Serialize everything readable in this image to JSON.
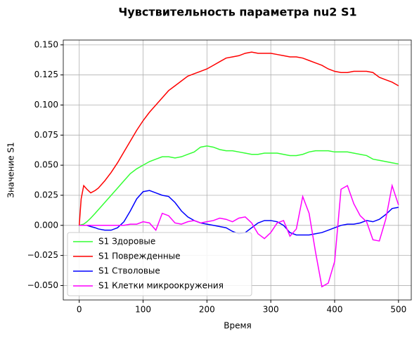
{
  "chart_data": {
    "type": "line",
    "title": "Чувствительность параметра nu2 S1",
    "xlabel": "Время",
    "ylabel": "Значение S1",
    "x": [
      0,
      3,
      7,
      12,
      18,
      25,
      30,
      40,
      50,
      60,
      70,
      80,
      90,
      100,
      110,
      120,
      130,
      140,
      150,
      160,
      170,
      180,
      190,
      200,
      210,
      220,
      230,
      240,
      250,
      260,
      270,
      280,
      290,
      300,
      310,
      320,
      330,
      340,
      350,
      360,
      370,
      380,
      390,
      400,
      410,
      420,
      430,
      440,
      450,
      460,
      470,
      480,
      490,
      500
    ],
    "series": [
      {
        "name": "S1 Здоровые",
        "color": "#33ff33",
        "values": [
          0,
          0.0005,
          0.001,
          0.003,
          0.006,
          0.01,
          0.013,
          0.019,
          0.025,
          0.031,
          0.037,
          0.043,
          0.047,
          0.05,
          0.053,
          0.055,
          0.057,
          0.057,
          0.056,
          0.057,
          0.059,
          0.061,
          0.065,
          0.066,
          0.065,
          0.063,
          0.062,
          0.062,
          0.061,
          0.06,
          0.059,
          0.059,
          0.06,
          0.06,
          0.06,
          0.059,
          0.058,
          0.058,
          0.059,
          0.061,
          0.062,
          0.062,
          0.062,
          0.061,
          0.061,
          0.061,
          0.06,
          0.059,
          0.058,
          0.055,
          0.054,
          0.053,
          0.052,
          0.051
        ]
      },
      {
        "name": "S1 Поврежденные",
        "color": "#ff0000",
        "values": [
          0,
          0.022,
          0.033,
          0.03,
          0.027,
          0.029,
          0.031,
          0.037,
          0.044,
          0.052,
          0.061,
          0.07,
          0.079,
          0.087,
          0.094,
          0.1,
          0.106,
          0.112,
          0.116,
          0.12,
          0.124,
          0.126,
          0.128,
          0.13,
          0.133,
          0.136,
          0.139,
          0.14,
          0.141,
          0.143,
          0.144,
          0.143,
          0.143,
          0.143,
          0.142,
          0.141,
          0.14,
          0.14,
          0.139,
          0.137,
          0.135,
          0.133,
          0.13,
          0.128,
          0.127,
          0.127,
          0.128,
          0.128,
          0.128,
          0.127,
          0.123,
          0.121,
          0.119,
          0.116
        ]
      },
      {
        "name": "S1 Стволовые",
        "color": "#0000ff",
        "values": [
          0,
          0,
          0,
          0,
          -0.001,
          -0.002,
          -0.003,
          -0.004,
          -0.004,
          -0.002,
          0.003,
          0.012,
          0.022,
          0.028,
          0.029,
          0.027,
          0.025,
          0.024,
          0.019,
          0.012,
          0.007,
          0.004,
          0.002,
          0.001,
          0,
          -0.001,
          -0.002,
          -0.005,
          -0.007,
          -0.006,
          -0.002,
          0.002,
          0.004,
          0.004,
          0.003,
          0,
          -0.006,
          -0.008,
          -0.008,
          -0.008,
          -0.007,
          -0.006,
          -0.004,
          -0.002,
          0,
          0.001,
          0.001,
          0.002,
          0.004,
          0.003,
          0.005,
          0.009,
          0.014,
          0.015
        ]
      },
      {
        "name": "S1 Клетки микроокружения",
        "color": "#ff00ff",
        "values": [
          0,
          0,
          0,
          0,
          0,
          0,
          0,
          0,
          0,
          0,
          0,
          0.001,
          0.001,
          0.003,
          0.002,
          -0.004,
          0.01,
          0.008,
          0.002,
          0.001,
          0.003,
          0.004,
          0.002,
          0.003,
          0.004,
          0.006,
          0.005,
          0.003,
          0.006,
          0.007,
          0.002,
          -0.007,
          -0.011,
          -0.006,
          0.002,
          0.004,
          -0.009,
          -0.003,
          0.024,
          0.01,
          -0.022,
          -0.051,
          -0.048,
          -0.03,
          0.03,
          0.033,
          0.018,
          0.008,
          0.003,
          -0.012,
          -0.013,
          0.005,
          0.033,
          0.017
        ]
      }
    ],
    "xlim": [
      -25,
      520
    ],
    "ylim": [
      -0.062,
      0.154
    ],
    "xticks": [
      0,
      100,
      200,
      300,
      400,
      500
    ],
    "yticks": [
      {
        "value": -0.05,
        "label": "−0.050"
      },
      {
        "value": -0.025,
        "label": "−0.025"
      },
      {
        "value": 0,
        "label": "0.000"
      },
      {
        "value": 0.025,
        "label": "0.025"
      },
      {
        "value": 0.05,
        "label": "0.050"
      },
      {
        "value": 0.075,
        "label": "0.075"
      },
      {
        "value": 0.1,
        "label": "0.100"
      },
      {
        "value": 0.125,
        "label": "0.125"
      },
      {
        "value": 0.15,
        "label": "0.150"
      }
    ],
    "grid": true,
    "legend": "lower left"
  }
}
